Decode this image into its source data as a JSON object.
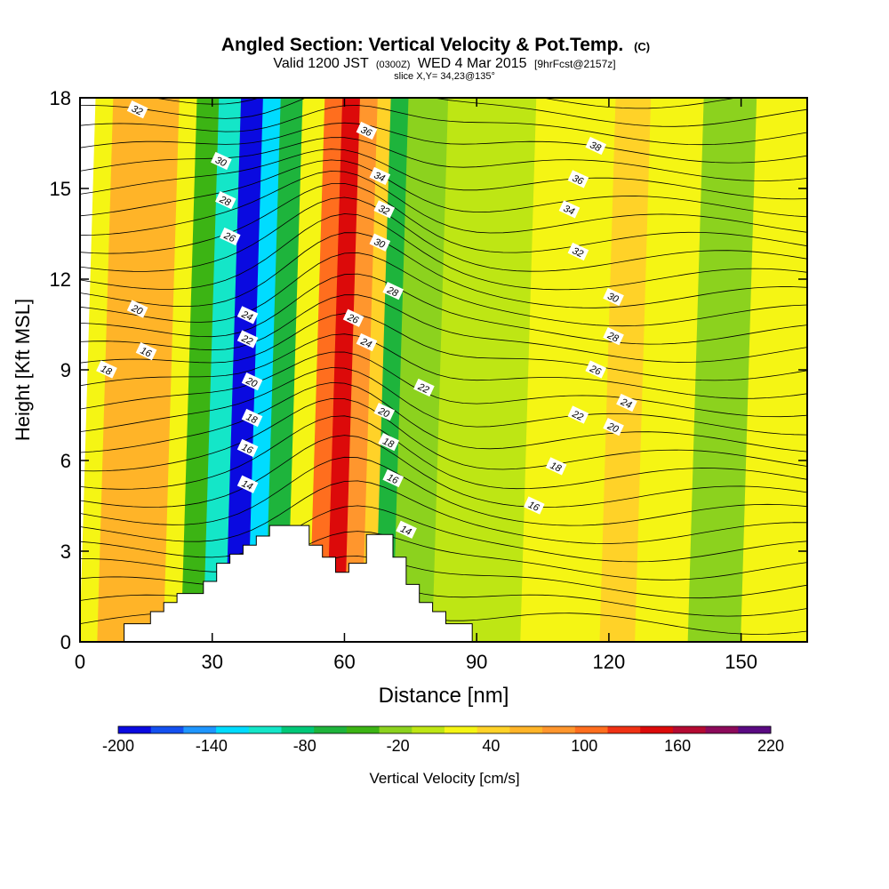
{
  "title": {
    "main": "Angled Section: Vertical Velocity & Pot.Temp.",
    "main_suffix": "(C)",
    "line2_a": "Valid 1200 JST",
    "line2_b": "(0300Z)",
    "line2_c": "WED 4 Mar 2015",
    "line2_d": "[9hrFcst@2157z]",
    "line3": "slice X,Y= 34,23@135°"
  },
  "chart_data": {
    "type": "heatmap",
    "xlabel": "Distance [nm]",
    "ylabel": "Height [Kft MSL]",
    "xlim": [
      0,
      165
    ],
    "ylim": [
      0,
      18
    ],
    "x_ticks": [
      0,
      30,
      60,
      90,
      120,
      150
    ],
    "y_ticks": [
      0,
      3,
      6,
      9,
      12,
      15,
      18
    ],
    "colorbar": {
      "label": "Vertical Velocity [cm/s]",
      "range": [
        -200,
        220
      ],
      "tick_values": [
        -200,
        -140,
        -80,
        -20,
        40,
        100,
        160,
        220
      ],
      "tick_labels": [
        "-200",
        "-140",
        "-80",
        "-20",
        "40",
        "100",
        "160",
        "220"
      ],
      "colors": [
        "#0a0ae0",
        "#1450f0",
        "#1e96ff",
        "#00dcff",
        "#14e6c8",
        "#00c878",
        "#1eb43c",
        "#3cb414",
        "#8cd21e",
        "#bee614",
        "#f5f514",
        "#ffd228",
        "#ffb428",
        "#ff962d",
        "#ff6e1e",
        "#f03214",
        "#dc0a0a",
        "#b40a32",
        "#8c0a5a",
        "#5a0a82"
      ]
    },
    "vertical_velocity_bands": [
      {
        "x_range": [
          0,
          4
        ],
        "value": 20
      },
      {
        "x_range": [
          4,
          19
        ],
        "value": 70
      },
      {
        "x_range": [
          19,
          23
        ],
        "value": 20
      },
      {
        "x_range": [
          23,
          28
        ],
        "value": -40
      },
      {
        "x_range": [
          28,
          33
        ],
        "value": -110
      },
      {
        "x_range": [
          33,
          38
        ],
        "value": -180
      },
      {
        "x_range": [
          38,
          42
        ],
        "value": -130
      },
      {
        "x_range": [
          42,
          47
        ],
        "value": -60
      },
      {
        "x_range": [
          47,
          52
        ],
        "value": 20
      },
      {
        "x_range": [
          52,
          56
        ],
        "value": 100
      },
      {
        "x_range": [
          56,
          60
        ],
        "value": 150
      },
      {
        "x_range": [
          60,
          64
        ],
        "value": 80
      },
      {
        "x_range": [
          64,
          67
        ],
        "value": 40
      },
      {
        "x_range": [
          67,
          71
        ],
        "value": -70
      },
      {
        "x_range": [
          71,
          80
        ],
        "value": -20
      },
      {
        "x_range": [
          80,
          100
        ],
        "value": 0
      },
      {
        "x_range": [
          100,
          118
        ],
        "value": 30
      },
      {
        "x_range": [
          118,
          126
        ],
        "value": 50
      },
      {
        "x_range": [
          126,
          138
        ],
        "value": 20
      },
      {
        "x_range": [
          138,
          150
        ],
        "value": -20
      },
      {
        "x_range": [
          150,
          165
        ],
        "value": 20
      }
    ],
    "theta_contours": [
      {
        "label": "14",
        "x": 38,
        "y": 5.2
      },
      {
        "label": "16",
        "x": 38,
        "y": 6.4
      },
      {
        "label": "18",
        "x": 39,
        "y": 7.4
      },
      {
        "label": "20",
        "x": 39,
        "y": 8.6
      },
      {
        "label": "22",
        "x": 38,
        "y": 10.0
      },
      {
        "label": "24",
        "x": 38,
        "y": 10.8
      },
      {
        "label": "26",
        "x": 34,
        "y": 13.4
      },
      {
        "label": "28",
        "x": 33,
        "y": 14.6
      },
      {
        "label": "30",
        "x": 32,
        "y": 15.9
      },
      {
        "label": "32",
        "x": 13,
        "y": 17.6
      },
      {
        "label": "20",
        "x": 13,
        "y": 11.0
      },
      {
        "label": "16",
        "x": 15,
        "y": 9.6
      },
      {
        "label": "18",
        "x": 6,
        "y": 9.0
      },
      {
        "label": "36",
        "x": 65,
        "y": 16.9
      },
      {
        "label": "34",
        "x": 68,
        "y": 15.4
      },
      {
        "label": "32",
        "x": 69,
        "y": 14.3
      },
      {
        "label": "30",
        "x": 68,
        "y": 13.2
      },
      {
        "label": "28",
        "x": 71,
        "y": 11.6
      },
      {
        "label": "26",
        "x": 62,
        "y": 10.7
      },
      {
        "label": "24",
        "x": 65,
        "y": 9.9
      },
      {
        "label": "22",
        "x": 78,
        "y": 8.4
      },
      {
        "label": "20",
        "x": 69,
        "y": 7.6
      },
      {
        "label": "18",
        "x": 70,
        "y": 6.6
      },
      {
        "label": "16",
        "x": 71,
        "y": 5.4
      },
      {
        "label": "14",
        "x": 74,
        "y": 3.7
      },
      {
        "label": "38",
        "x": 117,
        "y": 16.4
      },
      {
        "label": "36",
        "x": 113,
        "y": 15.3
      },
      {
        "label": "34",
        "x": 111,
        "y": 14.3
      },
      {
        "label": "32",
        "x": 113,
        "y": 12.9
      },
      {
        "label": "30",
        "x": 121,
        "y": 11.4
      },
      {
        "label": "28",
        "x": 121,
        "y": 10.1
      },
      {
        "label": "26",
        "x": 117,
        "y": 9.0
      },
      {
        "label": "24",
        "x": 124,
        "y": 7.9
      },
      {
        "label": "22",
        "x": 113,
        "y": 7.5
      },
      {
        "label": "20",
        "x": 121,
        "y": 7.1
      },
      {
        "label": "18",
        "x": 108,
        "y": 5.8
      },
      {
        "label": "16",
        "x": 103,
        "y": 4.5
      }
    ],
    "terrain": [
      [
        0,
        0
      ],
      [
        10,
        0
      ],
      [
        10,
        0.6
      ],
      [
        16,
        0.6
      ],
      [
        16,
        1.0
      ],
      [
        19,
        1.0
      ],
      [
        19,
        1.3
      ],
      [
        22,
        1.3
      ],
      [
        22,
        1.6
      ],
      [
        28,
        1.6
      ],
      [
        28,
        2.0
      ],
      [
        31,
        2.0
      ],
      [
        31,
        2.6
      ],
      [
        34,
        2.6
      ],
      [
        34,
        2.9
      ],
      [
        37,
        2.9
      ],
      [
        37,
        3.2
      ],
      [
        40,
        3.2
      ],
      [
        40,
        3.5
      ],
      [
        43,
        3.5
      ],
      [
        43,
        3.85
      ],
      [
        52,
        3.85
      ],
      [
        52,
        3.2
      ],
      [
        55,
        3.2
      ],
      [
        55,
        2.8
      ],
      [
        58,
        2.8
      ],
      [
        58,
        2.3
      ],
      [
        61,
        2.3
      ],
      [
        61,
        2.6
      ],
      [
        65,
        2.6
      ],
      [
        65,
        3.55
      ],
      [
        71,
        3.55
      ],
      [
        71,
        2.8
      ],
      [
        74,
        2.8
      ],
      [
        74,
        1.9
      ],
      [
        77,
        1.9
      ],
      [
        77,
        1.3
      ],
      [
        80,
        1.3
      ],
      [
        80,
        1.0
      ],
      [
        83,
        1.0
      ],
      [
        83,
        0.6
      ],
      [
        89,
        0.6
      ],
      [
        89,
        0
      ],
      [
        165,
        0
      ]
    ]
  }
}
